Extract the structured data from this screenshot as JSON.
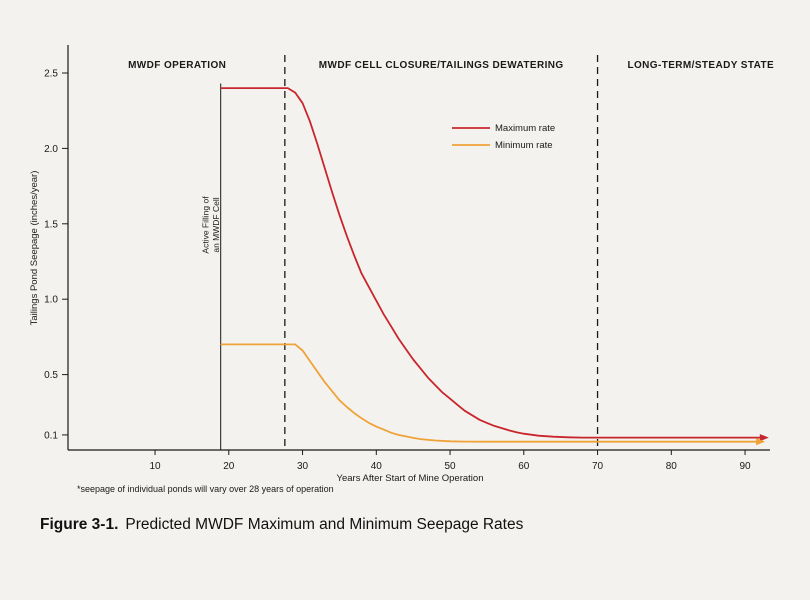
{
  "caption": {
    "label": "Figure 3-1.",
    "title": "Predicted MWDF Maximum and Minimum Seepage Rates"
  },
  "footnote": "*seepage of individual ponds will vary over 28 years of operation",
  "chart_data": {
    "type": "line",
    "title": "",
    "xlabel": "Years After Start of Mine Operation",
    "ylabel": "Tailings Pond Seepage (inches/year)",
    "x_ticks": [
      10,
      20,
      30,
      40,
      50,
      60,
      70,
      80,
      90
    ],
    "y_tick_values": [
      0.1,
      0.5,
      1.0,
      1.5,
      2.0,
      2.5
    ],
    "y_tick_labels": [
      "0.1",
      "0.5",
      "1.0",
      "1.5",
      "2.0",
      "2.5"
    ],
    "xlim": [
      0,
      95
    ],
    "ylim": [
      0,
      2.65
    ],
    "grid": false,
    "legend_position": "upper-center",
    "phases": [
      {
        "label": "MWDF OPERATION",
        "label_x_year": 13
      },
      {
        "label": "MWDF CELL CLOSURE/TAILINGS DEWATERING",
        "label_x_year": 48.8
      },
      {
        "label": "LONG-TERM/STEADY STATE",
        "label_x_year": 84
      }
    ],
    "phase_divider_years": [
      27.6,
      70
    ],
    "annotation": {
      "lines": [
        "Active Filling of",
        "an MWDF Cell"
      ],
      "x_year": 18.9,
      "top_value": 2.43
    },
    "series": [
      {
        "name": "Maximum rate",
        "color": "#c8262c",
        "arrow_end": true,
        "points": [
          [
            19,
            2.4
          ],
          [
            28,
            2.4
          ],
          [
            29,
            2.37
          ],
          [
            30,
            2.3
          ],
          [
            31,
            2.18
          ],
          [
            32,
            2.03
          ],
          [
            33,
            1.87
          ],
          [
            34,
            1.71
          ],
          [
            35,
            1.56
          ],
          [
            36,
            1.42
          ],
          [
            37,
            1.29
          ],
          [
            38,
            1.17
          ],
          [
            39,
            1.08
          ],
          [
            40,
            0.99
          ],
          [
            41,
            0.9
          ],
          [
            42,
            0.82
          ],
          [
            43,
            0.74
          ],
          [
            44,
            0.67
          ],
          [
            45,
            0.6
          ],
          [
            46,
            0.54
          ],
          [
            47,
            0.48
          ],
          [
            48,
            0.43
          ],
          [
            49,
            0.38
          ],
          [
            50,
            0.34
          ],
          [
            51,
            0.3
          ],
          [
            52,
            0.26
          ],
          [
            53,
            0.23
          ],
          [
            54,
            0.2
          ],
          [
            55,
            0.18
          ],
          [
            56,
            0.16
          ],
          [
            57,
            0.145
          ],
          [
            58,
            0.13
          ],
          [
            59,
            0.118
          ],
          [
            60,
            0.108
          ],
          [
            62,
            0.095
          ],
          [
            64,
            0.088
          ],
          [
            66,
            0.084
          ],
          [
            68,
            0.082
          ],
          [
            70,
            0.082
          ],
          [
            92,
            0.082
          ]
        ]
      },
      {
        "name": "Minimum rate",
        "color": "#efa238",
        "arrow_end": true,
        "points": [
          [
            19,
            0.7
          ],
          [
            29,
            0.7
          ],
          [
            30,
            0.66
          ],
          [
            31,
            0.59
          ],
          [
            32,
            0.52
          ],
          [
            33,
            0.45
          ],
          [
            34,
            0.39
          ],
          [
            35,
            0.33
          ],
          [
            36,
            0.285
          ],
          [
            37,
            0.245
          ],
          [
            38,
            0.21
          ],
          [
            39,
            0.18
          ],
          [
            40,
            0.155
          ],
          [
            41,
            0.135
          ],
          [
            42,
            0.115
          ],
          [
            43,
            0.1
          ],
          [
            44,
            0.09
          ],
          [
            45,
            0.08
          ],
          [
            46,
            0.072
          ],
          [
            48,
            0.063
          ],
          [
            50,
            0.058
          ],
          [
            52,
            0.056
          ],
          [
            55,
            0.055
          ],
          [
            60,
            0.055
          ],
          [
            91.5,
            0.055
          ]
        ]
      }
    ]
  }
}
